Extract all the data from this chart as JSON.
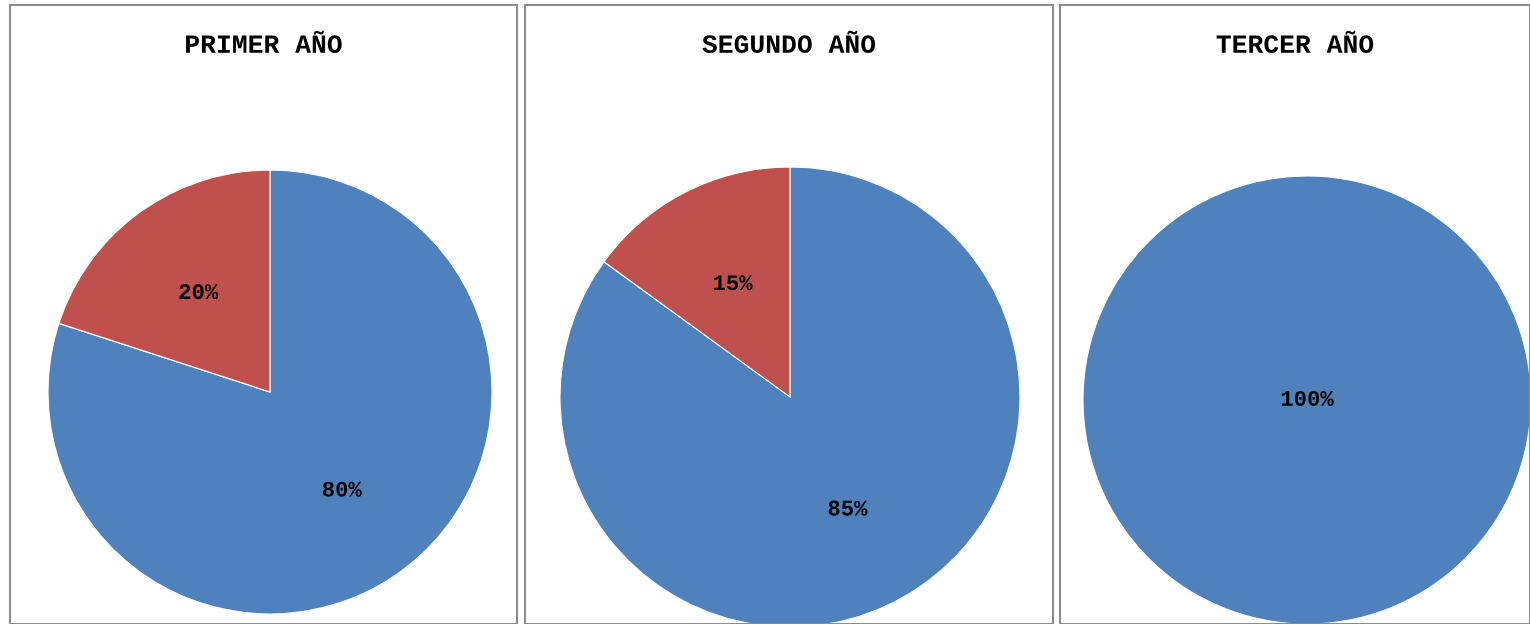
{
  "chart_data": [
    {
      "type": "pie",
      "title": "PRIMER AÑO",
      "categories": [
        null,
        null
      ],
      "values": [
        80,
        20
      ],
      "colors": [
        "#4f81bd",
        "#c0504d"
      ],
      "value_labels": [
        "80%",
        "20%"
      ]
    },
    {
      "type": "pie",
      "title": "SEGUNDO AÑO",
      "categories": [
        null,
        null
      ],
      "values": [
        85,
        15
      ],
      "colors": [
        "#4f81bd",
        "#c0504d"
      ],
      "value_labels": [
        "85%",
        "15%"
      ]
    },
    {
      "type": "pie",
      "title": "TERCER AÑO",
      "categories": [
        null
      ],
      "values": [
        100
      ],
      "colors": [
        "#4f81bd"
      ],
      "value_labels": [
        "100%"
      ]
    }
  ]
}
